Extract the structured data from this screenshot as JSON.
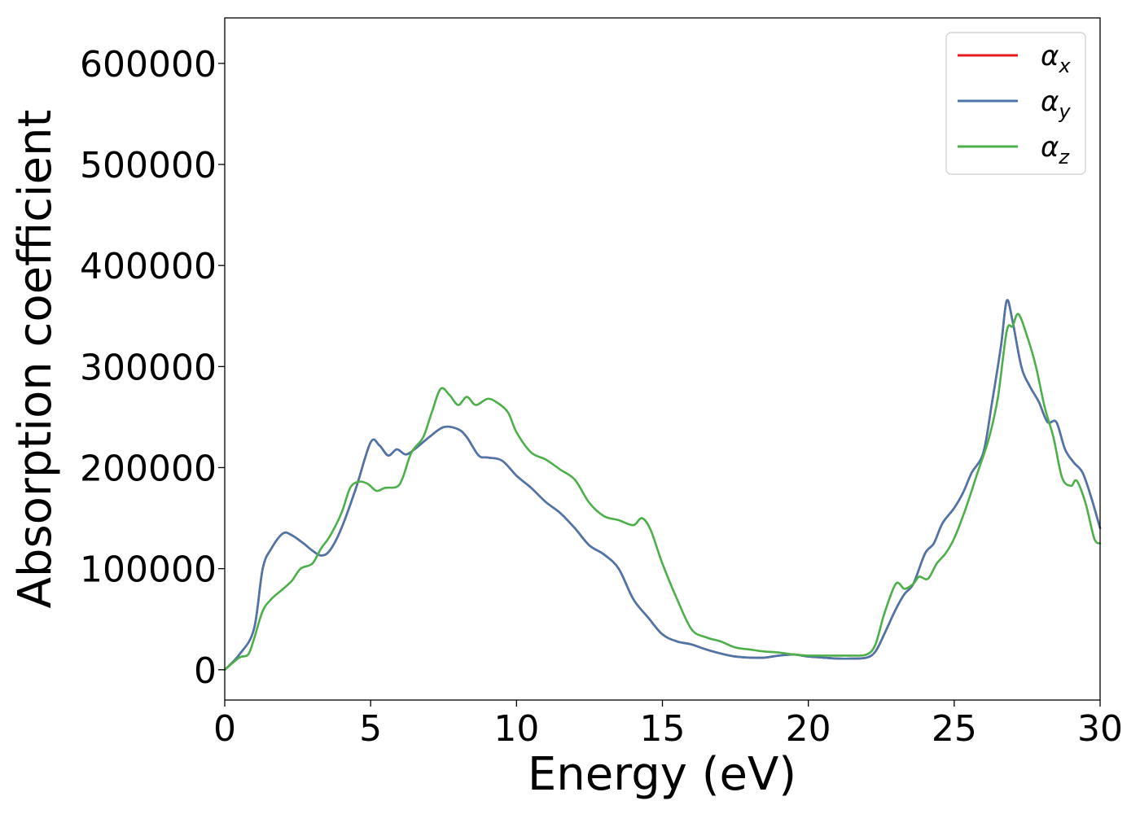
{
  "chart_data": {
    "type": "line",
    "xlabel": "Energy (eV)",
    "ylabel": "Absorption coefficient",
    "xlim": [
      0,
      30
    ],
    "ylim": [
      -30000,
      645000
    ],
    "xticks": [
      0,
      5,
      10,
      15,
      20,
      25,
      30
    ],
    "xtick_labels": [
      "0",
      "5",
      "10",
      "15",
      "20",
      "25",
      "30"
    ],
    "yticks": [
      0,
      100000,
      200000,
      300000,
      400000,
      500000,
      600000
    ],
    "ytick_labels": [
      "0",
      "100000",
      "200000",
      "300000",
      "400000",
      "500000",
      "600000"
    ],
    "grid": false,
    "legend_position": "top-right",
    "series": [
      {
        "name": "α_x",
        "label_main": "α",
        "label_sub": "x",
        "color": "#e41a1c",
        "x": [
          0,
          0.5,
          1,
          1.3,
          1.6,
          2,
          2.3,
          2.7,
          3,
          3.3,
          3.6,
          4,
          4.5,
          5,
          5.3,
          5.6,
          5.9,
          6.2,
          6.5,
          7,
          7.5,
          8,
          8.3,
          8.7,
          9,
          9.5,
          10,
          10.5,
          11,
          11.5,
          12,
          12.5,
          13,
          13.5,
          14,
          14.5,
          15,
          15.5,
          16,
          16.5,
          17,
          17.5,
          18,
          18.5,
          19,
          19.5,
          20,
          20.5,
          21,
          21.5,
          22,
          22.3,
          22.6,
          23,
          23.3,
          23.6,
          24,
          24.3,
          24.6,
          25,
          25.3,
          25.6,
          26,
          26.3,
          26.6,
          26.8,
          27,
          27.3,
          27.6,
          27.9,
          28.2,
          28.5,
          28.8,
          29.1,
          29.4,
          29.7,
          30
        ],
        "y": [
          0,
          15000,
          40000,
          100000,
          120000,
          135000,
          133000,
          125000,
          118000,
          113000,
          118000,
          140000,
          180000,
          225000,
          222000,
          212000,
          218000,
          213000,
          218000,
          230000,
          240000,
          238000,
          230000,
          212000,
          210000,
          207000,
          192000,
          180000,
          166000,
          155000,
          140000,
          123000,
          114000,
          100000,
          70000,
          52000,
          35000,
          28000,
          25000,
          20000,
          16000,
          13000,
          12000,
          12000,
          14000,
          15000,
          13000,
          12000,
          11000,
          11000,
          12000,
          18000,
          35000,
          60000,
          75000,
          85000,
          115000,
          125000,
          145000,
          160000,
          175000,
          195000,
          215000,
          265000,
          320000,
          365000,
          345000,
          300000,
          280000,
          265000,
          245000,
          245000,
          218000,
          205000,
          195000,
          170000,
          140000
        ]
      },
      {
        "name": "α_y",
        "label_main": "α",
        "label_sub": "y",
        "color": "#4a76aa",
        "x": [
          0,
          0.5,
          1,
          1.3,
          1.6,
          2,
          2.3,
          2.7,
          3,
          3.3,
          3.6,
          4,
          4.5,
          5,
          5.3,
          5.6,
          5.9,
          6.2,
          6.5,
          7,
          7.5,
          8,
          8.3,
          8.7,
          9,
          9.5,
          10,
          10.5,
          11,
          11.5,
          12,
          12.5,
          13,
          13.5,
          14,
          14.5,
          15,
          15.5,
          16,
          16.5,
          17,
          17.5,
          18,
          18.5,
          19,
          19.5,
          20,
          20.5,
          21,
          21.5,
          22,
          22.3,
          22.6,
          23,
          23.3,
          23.6,
          24,
          24.3,
          24.6,
          25,
          25.3,
          25.6,
          26,
          26.3,
          26.6,
          26.8,
          27,
          27.3,
          27.6,
          27.9,
          28.2,
          28.5,
          28.8,
          29.1,
          29.4,
          29.7,
          30
        ],
        "y": [
          0,
          15000,
          40000,
          100000,
          120000,
          135000,
          133000,
          125000,
          118000,
          113000,
          118000,
          140000,
          180000,
          225000,
          222000,
          212000,
          218000,
          213000,
          218000,
          230000,
          240000,
          238000,
          230000,
          212000,
          210000,
          207000,
          192000,
          180000,
          166000,
          155000,
          140000,
          123000,
          114000,
          100000,
          70000,
          52000,
          35000,
          28000,
          25000,
          20000,
          16000,
          13000,
          12000,
          12000,
          14000,
          15000,
          13000,
          12000,
          11000,
          11000,
          12000,
          18000,
          35000,
          60000,
          75000,
          85000,
          115000,
          125000,
          145000,
          160000,
          175000,
          195000,
          215000,
          265000,
          320000,
          365000,
          345000,
          300000,
          280000,
          265000,
          245000,
          245000,
          218000,
          205000,
          195000,
          170000,
          140000
        ]
      },
      {
        "name": "α_z",
        "label_main": "α",
        "label_sub": "z",
        "color": "#4daf4a",
        "x": [
          0,
          0.5,
          0.8,
          1,
          1.3,
          1.6,
          2,
          2.3,
          2.6,
          3,
          3.3,
          3.6,
          4,
          4.3,
          4.6,
          4.9,
          5.2,
          5.5,
          5.9,
          6.1,
          6.4,
          6.8,
          7.1,
          7.4,
          7.7,
          8,
          8.3,
          8.6,
          9,
          9.3,
          9.7,
          10,
          10.5,
          11,
          11.5,
          12,
          12.5,
          13,
          13.5,
          14,
          14.3,
          14.6,
          15,
          15.5,
          16,
          16.5,
          17,
          17.5,
          18,
          18.5,
          19,
          19.5,
          20,
          20.5,
          21,
          21.5,
          22,
          22.3,
          22.6,
          23,
          23.3,
          23.6,
          23.8,
          24.1,
          24.4,
          24.7,
          25,
          25.4,
          25.8,
          26.2,
          26.5,
          26.8,
          27,
          27.2,
          27.5,
          27.8,
          28.1,
          28.4,
          28.7,
          29,
          29.2,
          29.5,
          29.8,
          30
        ],
        "y": [
          0,
          12000,
          15000,
          30000,
          58000,
          70000,
          80000,
          88000,
          100000,
          105000,
          120000,
          132000,
          155000,
          180000,
          186000,
          184000,
          177000,
          180000,
          181000,
          190000,
          215000,
          230000,
          255000,
          278000,
          272000,
          262000,
          270000,
          262000,
          268000,
          265000,
          255000,
          235000,
          215000,
          208000,
          198000,
          188000,
          165000,
          152000,
          148000,
          143000,
          150000,
          138000,
          105000,
          70000,
          40000,
          32000,
          28000,
          22000,
          20000,
          18000,
          17000,
          15000,
          14000,
          14000,
          14000,
          14000,
          15000,
          25000,
          55000,
          85000,
          80000,
          85000,
          92000,
          90000,
          105000,
          115000,
          130000,
          160000,
          195000,
          230000,
          270000,
          335000,
          340000,
          352000,
          330000,
          300000,
          260000,
          230000,
          190000,
          182000,
          187000,
          165000,
          130000,
          125000
        ]
      }
    ]
  }
}
